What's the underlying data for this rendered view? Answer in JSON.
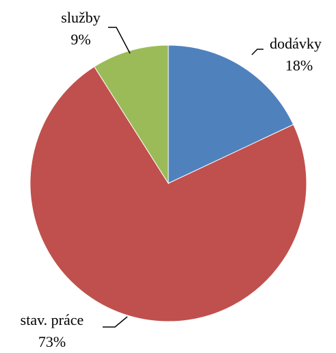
{
  "chart_data": {
    "type": "pie",
    "categories": [
      "dodávky",
      "stav. práce",
      "služby"
    ],
    "values": [
      18,
      73,
      9
    ],
    "value_labels": [
      "18%",
      "73%",
      "9%"
    ],
    "colors": [
      "#4f81bd",
      "#c0504d",
      "#9bbb59"
    ]
  }
}
